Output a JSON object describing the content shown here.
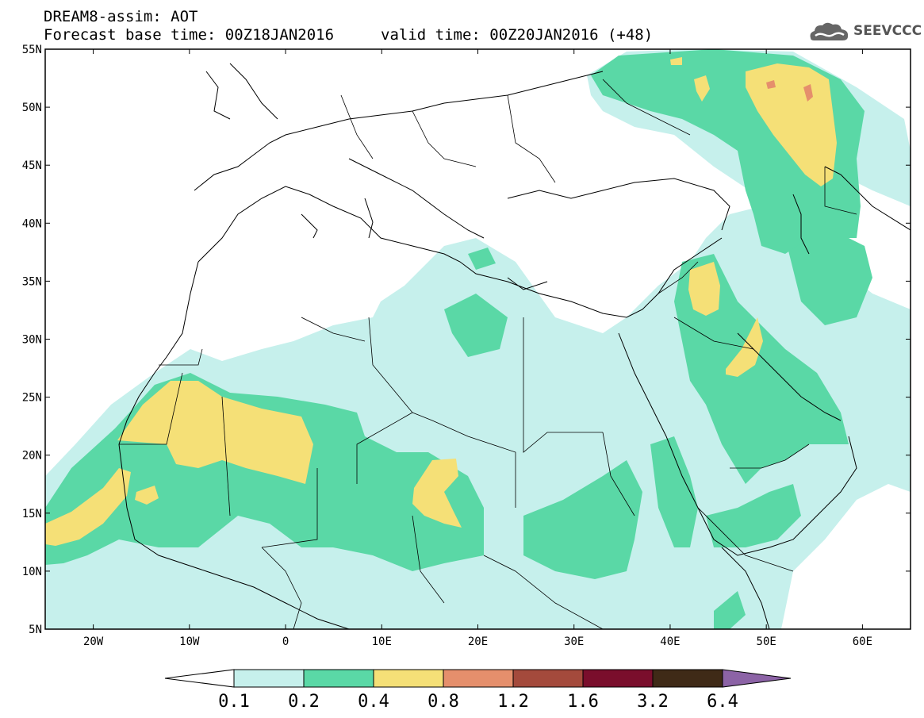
{
  "header": {
    "line1": "DREAM8-assim: AOT",
    "line2": "Forecast base time: 00Z18JAN2016",
    "valid": "valid time: 00Z20JAN2016 (+48)",
    "logo_text": "SEEVCCC"
  },
  "axes": {
    "lat_labels": [
      "55N",
      "50N",
      "45N",
      "40N",
      "35N",
      "30N",
      "25N",
      "20N",
      "15N",
      "10N",
      "5N"
    ],
    "lon_labels": [
      "20W",
      "10W",
      "0",
      "10E",
      "20E",
      "30E",
      "40E",
      "50E",
      "60E"
    ]
  },
  "colorbar": {
    "labels": [
      "0.1",
      "0.2",
      "0.4",
      "0.8",
      "1.2",
      "1.6",
      "3.2",
      "6.4"
    ],
    "colors": [
      "#ffffff",
      "#c6f0ec",
      "#5ad8a6",
      "#f5e077",
      "#e58f6c",
      "#a44a3c",
      "#7a0e2c",
      "#3f2a17",
      "#8c63a6"
    ]
  },
  "map_colors": {
    "level1": "#c6f0ec",
    "level2": "#5ad8a6",
    "level3": "#f5e077",
    "level4": "#e58f6c"
  }
}
